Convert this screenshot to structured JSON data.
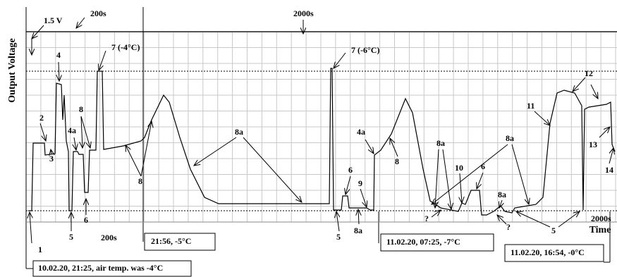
{
  "axis": {
    "y_label": "Output Voltage",
    "x_label": "Time"
  },
  "labels": [
    "1.5 V",
    "200s",
    "2000s",
    "4",
    "7 (-4°C)",
    "7 (-6°C)",
    "2",
    "8",
    "4a",
    "3",
    "8a",
    "8",
    "1",
    "5",
    "6",
    "200s",
    "5",
    "6",
    "9",
    "8a",
    "4a",
    "8",
    "8a",
    "?",
    "10",
    "6",
    "8a",
    "?",
    "8a",
    "5",
    "11",
    "12",
    "13",
    "14",
    "2000s"
  ],
  "boxes": [
    "21:56, -5°C",
    "10.02.20, 21:25, air temp. was -4°C",
    "11.02.20, 07:25, -7°C",
    "11.02.20, 16:54, -0°C"
  ]
}
